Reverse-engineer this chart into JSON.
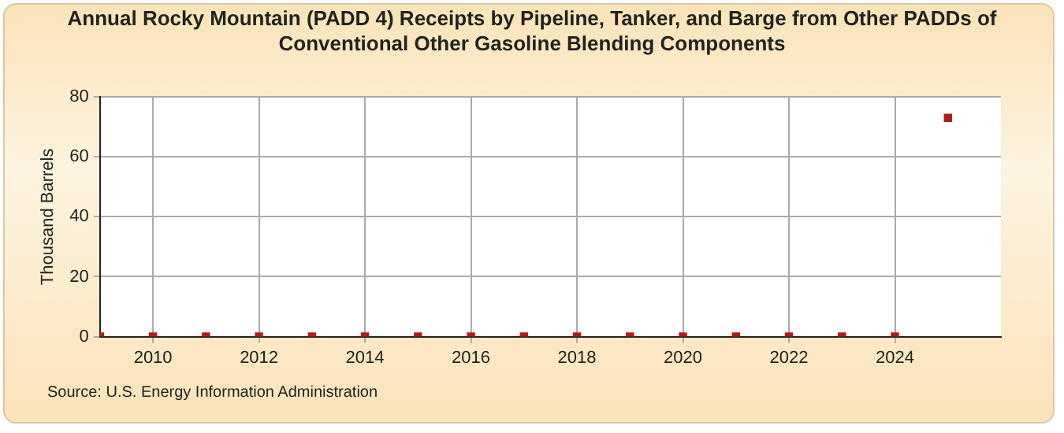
{
  "chart_data": {
    "type": "scatter",
    "title": "Annual Rocky Mountain (PADD 4) Receipts by Pipeline, Tanker, and Barge from Other PADDs of Conventional Other Gasoline Blending Components",
    "ylabel": "Thousand Barrels",
    "x": [
      2009,
      2010,
      2011,
      2012,
      2013,
      2014,
      2015,
      2016,
      2017,
      2018,
      2019,
      2020,
      2021,
      2022,
      2023,
      2024,
      2025
    ],
    "series": [
      {
        "color": "#b01c1c",
        "values": [
          0,
          0,
          0,
          0,
          0,
          0,
          0,
          0,
          0,
          0,
          0,
          0,
          0,
          0,
          0,
          0,
          73
        ]
      }
    ],
    "xlim": [
      2009,
      2026
    ],
    "xticks": [
      2010,
      2012,
      2014,
      2016,
      2018,
      2020,
      2022,
      2024
    ],
    "ylim": [
      0,
      80
    ],
    "yticks": [
      0,
      20,
      40,
      60,
      80
    ],
    "grid": true,
    "legend": false,
    "marker": "square",
    "annotations": [
      "Source: U.S. Energy Information Administration"
    ]
  }
}
